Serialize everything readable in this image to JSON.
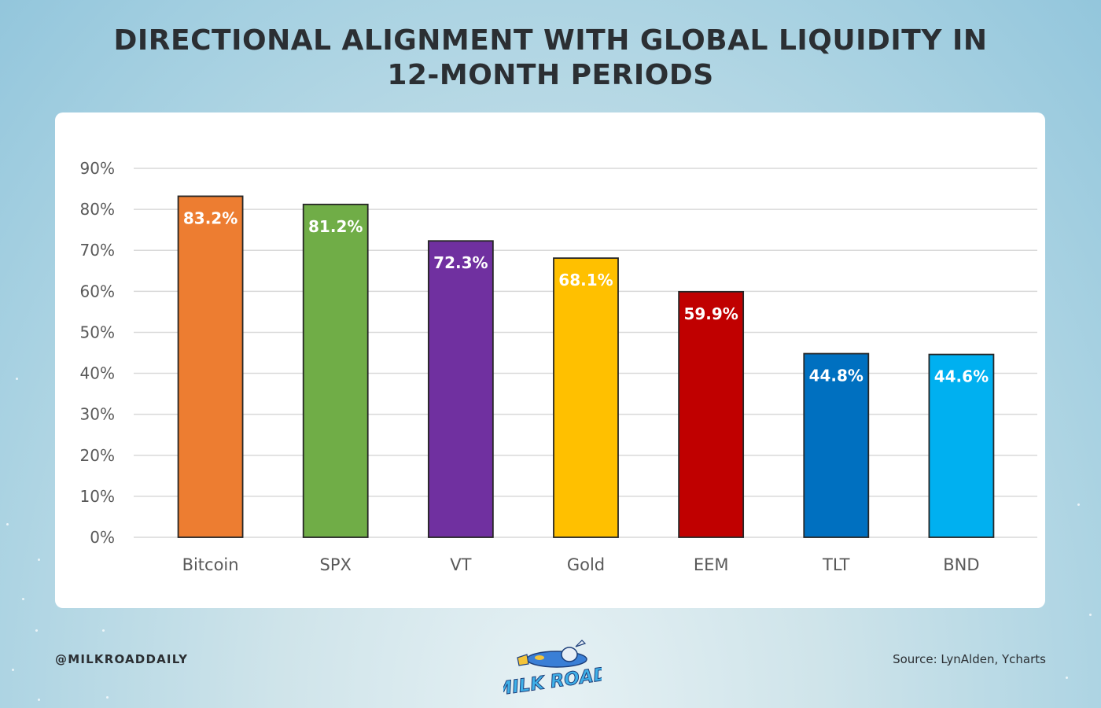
{
  "header": {
    "title_line1": "DIRECTIONAL ALIGNMENT WITH GLOBAL LIQUIDITY IN",
    "title_line2": "12-MONTH PERIODS"
  },
  "footer": {
    "handle": "@MILKROADDAILY",
    "source": "Source: LynAlden, Ycharts",
    "logo_text": "MILK ROAD"
  },
  "chart_data": {
    "type": "bar",
    "categories": [
      "Bitcoin",
      "SPX",
      "VT",
      "Gold",
      "EEM",
      "TLT",
      "BND"
    ],
    "values": [
      83.2,
      81.2,
      72.3,
      68.1,
      59.9,
      44.8,
      44.6
    ],
    "data_labels": [
      "83.2%",
      "81.2%",
      "72.3%",
      "68.1%",
      "59.9%",
      "44.8%",
      "44.6%"
    ],
    "colors": [
      "#ED7D31",
      "#70AD47",
      "#7030A0",
      "#FFC000",
      "#C00000",
      "#0070C0",
      "#00B0F0"
    ],
    "ylim": [
      0,
      90
    ],
    "yticks": [
      "0%",
      "10%",
      "20%",
      "30%",
      "40%",
      "50%",
      "60%",
      "70%",
      "80%",
      "90%"
    ],
    "grid": true,
    "legend": "none"
  }
}
